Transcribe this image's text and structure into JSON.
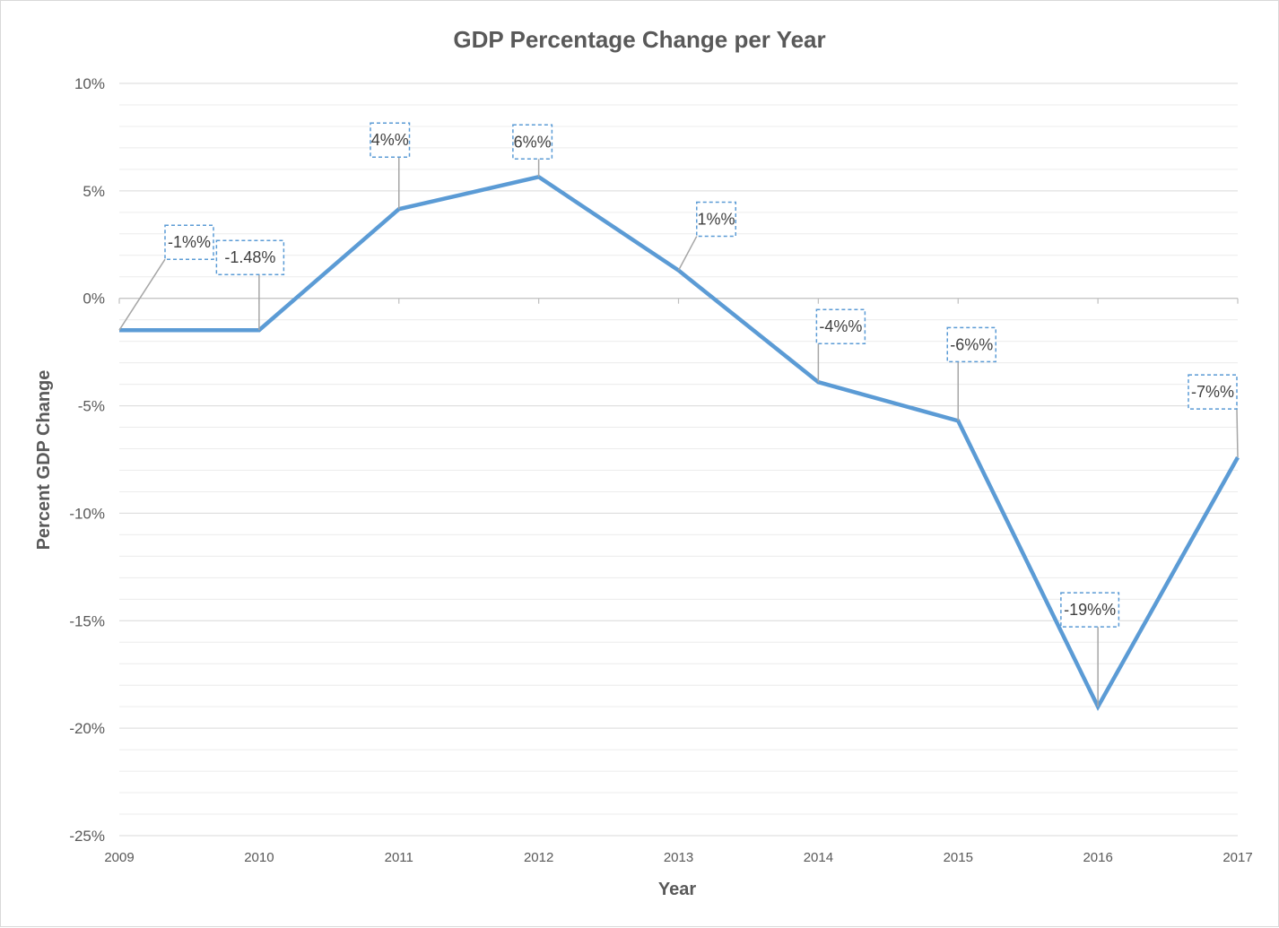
{
  "chart_data": {
    "type": "line",
    "title": "GDP Percentage Change per Year",
    "xlabel": "Year",
    "ylabel": "Percent GDP Change",
    "ylim": [
      -25,
      10
    ],
    "y_major_step": 5,
    "y_minor_step": 1,
    "y_tick_labels": [
      "10%",
      "5%",
      "0%",
      "-5%",
      "-10%",
      "-15%",
      "-20%",
      "-25%"
    ],
    "grid": true,
    "legend": "none",
    "categories": [
      "2009",
      "2010",
      "2011",
      "2012",
      "2013",
      "2014",
      "2015",
      "2016",
      "2017"
    ],
    "series": [
      {
        "values": [
          -1.48,
          -1.48,
          4.15,
          5.65,
          1.3,
          -3.9,
          -5.7,
          -19.0,
          -7.4
        ],
        "color": "#5b9bd5",
        "data_labels": [
          "-1%%",
          "-1.48%",
          "4%%",
          "6%%",
          "1%%",
          "-4%%",
          "-6%%",
          "-19%%",
          "-7%%"
        ]
      }
    ]
  }
}
